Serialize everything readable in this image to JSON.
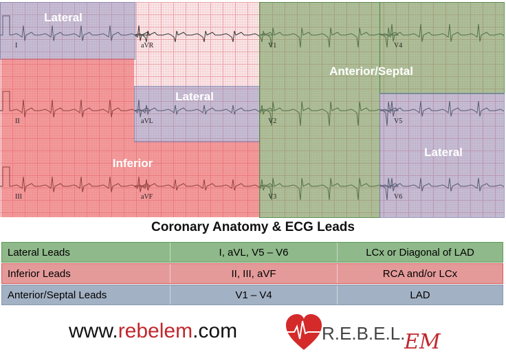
{
  "regions": [
    {
      "label": "Lateral",
      "color": "blue"
    },
    {
      "label": "Lateral",
      "color": "blue"
    },
    {
      "label": "Inferior",
      "color": "red"
    },
    {
      "label": "Anterior/Septal",
      "color": "green"
    },
    {
      "label": "Lateral",
      "color": "blue"
    }
  ],
  "leads": [
    "I",
    "aVR",
    "V1",
    "V4",
    "II",
    "aVL",
    "V2",
    "V5",
    "III",
    "aVF",
    "V3",
    "V6"
  ],
  "table": {
    "title": "Coronary Anatomy & ECG Leads",
    "rows": [
      {
        "group": "Lateral Leads",
        "leads": "I, aVL, V5 – V6",
        "artery": "LCx or Diagonal of LAD",
        "color": "#8fb98a"
      },
      {
        "group": "Inferior Leads",
        "leads": "II, III, aVF",
        "artery": "RCA and/or LCx",
        "color": "#e59a9a"
      },
      {
        "group": "Anterior/Septal Leads",
        "leads": "V1 – V4",
        "artery": "LAD",
        "color": "#a3b1c4"
      }
    ]
  },
  "footer": {
    "url_prefix": "www.",
    "url_brand": "rebelem",
    "url_suffix": ".com",
    "logo_text": "R.E.B.E.L.",
    "logo_em": "EM"
  },
  "colors": {
    "brand": "#c0272d",
    "lateral": "#8c8cbe",
    "inferior": "#eb5050",
    "anterior": "#6ea05a"
  }
}
